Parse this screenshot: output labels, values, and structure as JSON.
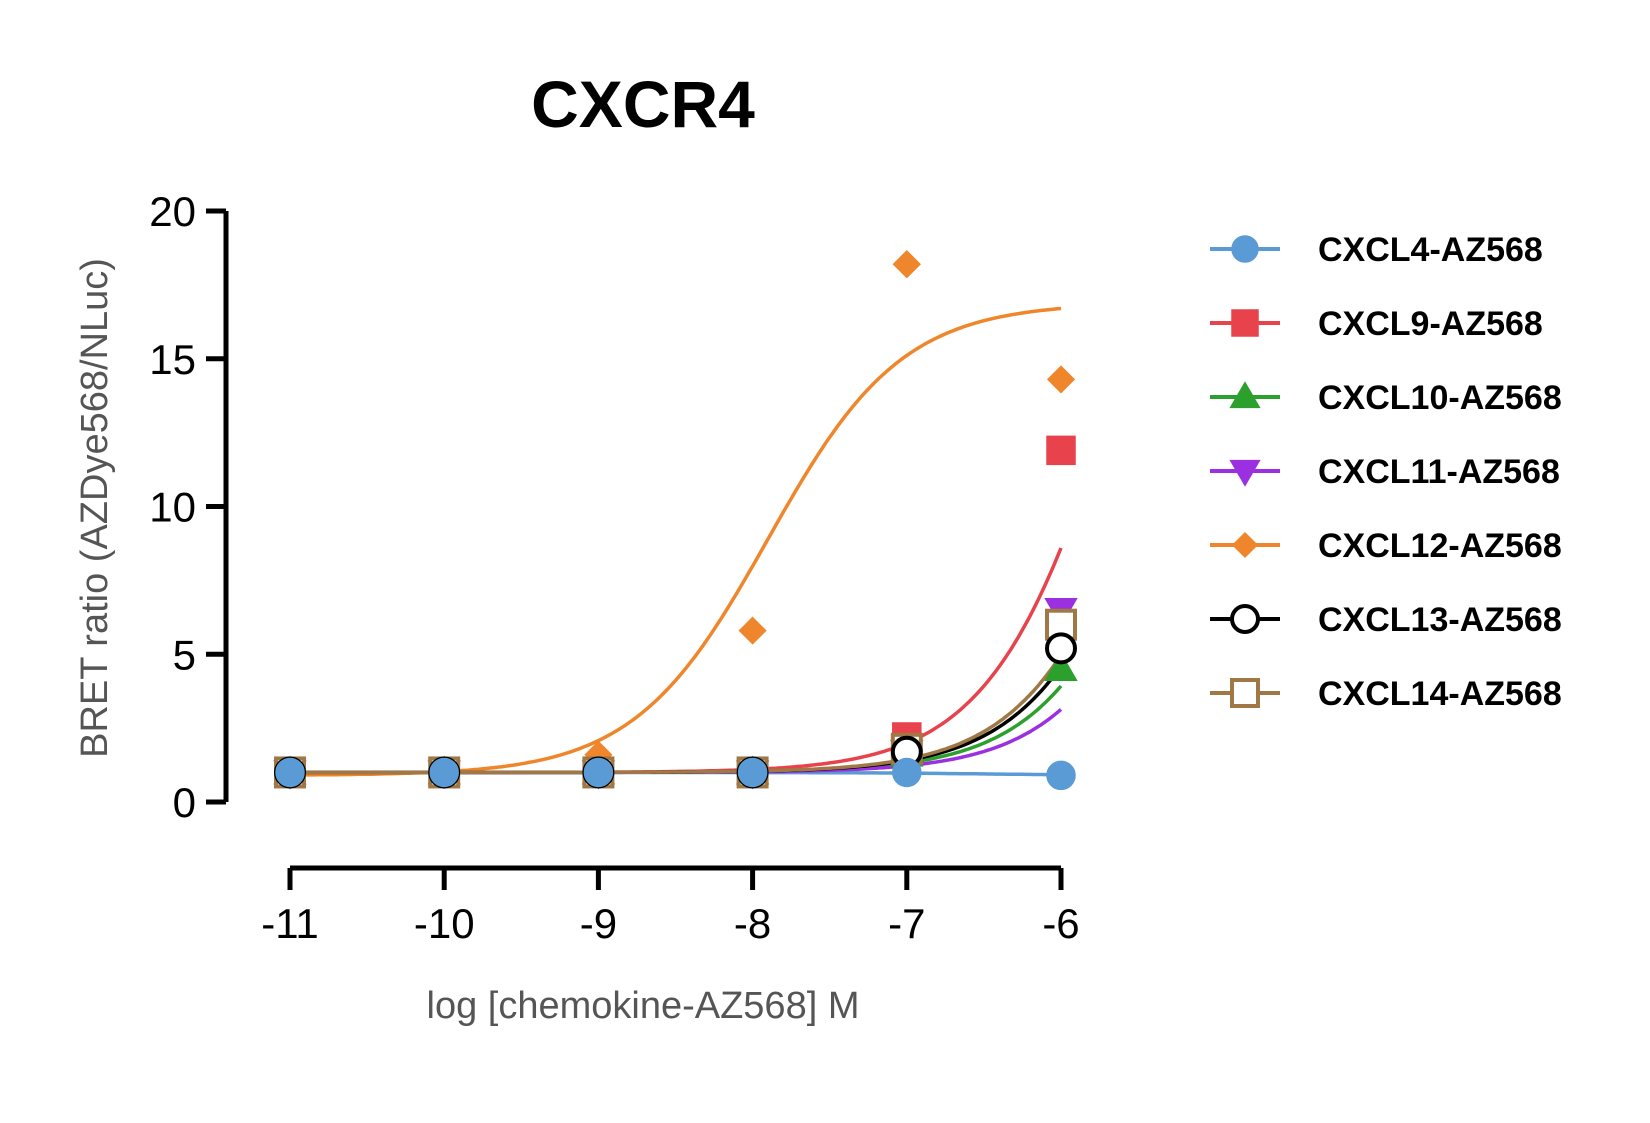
{
  "chart_data": {
    "type": "line",
    "title": "CXCR4",
    "xlabel": "log [chemokine-AZ568] M",
    "ylabel": "BRET ratio (AZDye568/NLuc)",
    "xlim": [
      -11,
      -6
    ],
    "ylim": [
      0,
      20
    ],
    "x_ticks": [
      -11,
      -10,
      -9,
      -8,
      -7,
      -6
    ],
    "y_ticks": [
      0,
      5,
      10,
      15,
      20
    ],
    "x_tick_labels": [
      "-11",
      "-10",
      "-9",
      "-8",
      "-7",
      "-6"
    ],
    "y_tick_labels": [
      "0",
      "5",
      "10",
      "15",
      "20"
    ],
    "legend_position": "right",
    "series": [
      {
        "name": "CXCL4-AZ568",
        "color": "#5b9bd5",
        "marker": "circle",
        "fill": "filled",
        "x": [
          -11,
          -10,
          -9,
          -8,
          -7,
          -6
        ],
        "y": [
          1.0,
          1.0,
          1.0,
          1.0,
          1.0,
          0.9
        ],
        "curve": {
          "bottom": 1.0,
          "top": 0.9,
          "logec50": -6.5,
          "hill": 1
        }
      },
      {
        "name": "CXCL9-AZ568",
        "color": "#e8434c",
        "marker": "square",
        "fill": "filled",
        "x": [
          -11,
          -10,
          -9,
          -8,
          -7,
          -6
        ],
        "y": [
          1.0,
          1.0,
          1.0,
          1.0,
          2.2,
          11.9
        ],
        "curve": {
          "bottom": 1.0,
          "top": 30,
          "logec50": -5.55,
          "hill": 1
        }
      },
      {
        "name": "CXCL10-AZ568",
        "color": "#2ca02c",
        "marker": "triangle-up",
        "fill": "filled",
        "x": [
          -11,
          -10,
          -9,
          -8,
          -7,
          -6
        ],
        "y": [
          1.0,
          1.0,
          1.0,
          1.0,
          1.6,
          4.5
        ],
        "curve": {
          "bottom": 1.0,
          "top": 30,
          "logec50": -5.05,
          "hill": 1
        }
      },
      {
        "name": "CXCL11-AZ568",
        "color": "#9b30e0",
        "marker": "triangle-down",
        "fill": "filled",
        "x": [
          -11,
          -10,
          -9,
          -8,
          -7,
          -6
        ],
        "y": [
          1.0,
          1.0,
          1.0,
          1.0,
          1.7,
          6.5
        ],
        "curve": {
          "bottom": 1.0,
          "top": 30,
          "logec50": -4.9,
          "hill": 1
        }
      },
      {
        "name": "CXCL12-AZ568",
        "color": "#f0862b",
        "marker": "diamond",
        "fill": "filled",
        "x": [
          -11,
          -10,
          -9,
          -8,
          -7,
          -7,
          -6
        ],
        "y": [
          0.9,
          1.0,
          1.6,
          5.8,
          18.2,
          18.2,
          14.3
        ],
        "curve": {
          "bottom": 0.9,
          "top": 16.9,
          "logec50": -7.9,
          "hill": 1
        }
      },
      {
        "name": "CXCL13-AZ568",
        "color": "#000000",
        "marker": "circle",
        "fill": "open",
        "x": [
          -11,
          -10,
          -9,
          -8,
          -7,
          -6
        ],
        "y": [
          1.0,
          1.0,
          1.0,
          1.0,
          1.7,
          5.2
        ],
        "curve": {
          "bottom": 1.0,
          "top": 30,
          "logec50": -5.15,
          "hill": 1
        }
      },
      {
        "name": "CXCL14-AZ568",
        "color": "#a07846",
        "marker": "square",
        "fill": "open",
        "x": [
          -11,
          -10,
          -9,
          -8,
          -7,
          -6
        ],
        "y": [
          1.0,
          1.0,
          1.0,
          1.0,
          1.8,
          6.0
        ],
        "curve": {
          "bottom": 1.0,
          "top": 30,
          "logec50": -5.2,
          "hill": 1
        }
      }
    ]
  }
}
